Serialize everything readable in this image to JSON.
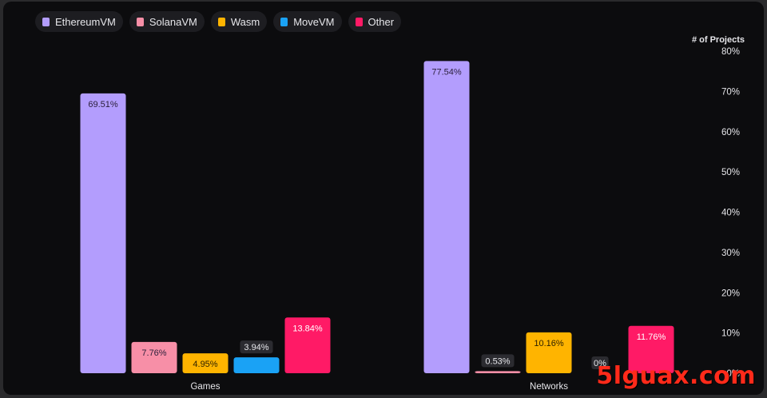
{
  "legend": [
    {
      "label": "EthereumVM",
      "color": "#b39dfd"
    },
    {
      "label": "SolanaVM",
      "color": "#f78fa7"
    },
    {
      "label": "Wasm",
      "color": "#ffb400"
    },
    {
      "label": "MoveVM",
      "color": "#1aa2f5"
    },
    {
      "label": "Other",
      "color": "#ff1a66"
    }
  ],
  "watermark": "5lguax.com",
  "chart_data": {
    "type": "bar",
    "categories": [
      "Games",
      "Networks"
    ],
    "series": [
      {
        "name": "EthereumVM",
        "color": "#b39dfd",
        "values": [
          69.51,
          77.54
        ],
        "labels": [
          "69.51%",
          "77.54%"
        ]
      },
      {
        "name": "SolanaVM",
        "color": "#f78fa7",
        "values": [
          7.76,
          0.53
        ],
        "labels": [
          "7.76%",
          "0.53%"
        ]
      },
      {
        "name": "Wasm",
        "color": "#ffb400",
        "values": [
          4.95,
          10.16
        ],
        "labels": [
          "4.95%",
          "10.16%"
        ]
      },
      {
        "name": "MoveVM",
        "color": "#1aa2f5",
        "values": [
          3.94,
          0
        ],
        "labels": [
          "3.94%",
          "0%"
        ]
      },
      {
        "name": "Other",
        "color": "#ff1a66",
        "values": [
          13.84,
          11.76
        ],
        "labels": [
          "13.84%",
          "11.76%"
        ]
      }
    ],
    "ylabel": "# of Projects",
    "yticks": [
      "0%",
      "10%",
      "20%",
      "30%",
      "40%",
      "50%",
      "60%",
      "70%",
      "80%"
    ],
    "ylim": [
      0,
      80
    ],
    "y_axis_side": "right",
    "legend_position": "top-left",
    "grid": false
  }
}
